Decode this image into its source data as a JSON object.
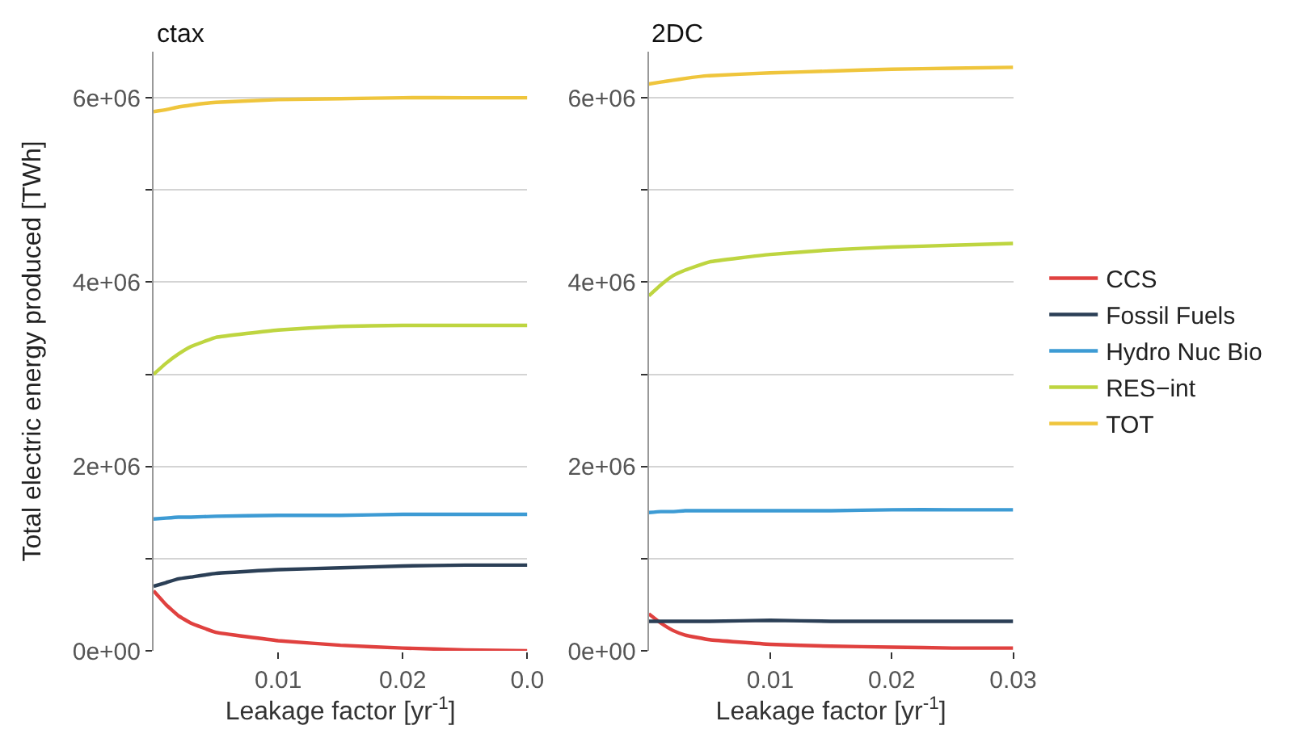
{
  "chart_data": [
    {
      "type": "line",
      "title": "ctax",
      "xlabel": "Leakage factor [yr$^{-1}$]",
      "ylabel": "Total electric energy produced [TWh]",
      "x": [
        0,
        0.001,
        0.002,
        0.003,
        0.005,
        0.01,
        0.015,
        0.02,
        0.025,
        0.03
      ],
      "xlim": [
        0,
        0.03
      ],
      "xticks": [
        0.01,
        0.02,
        {
          "value": 0.03,
          "label": "0.0"
        }
      ],
      "ylim": [
        0,
        6500000
      ],
      "yticks": [
        {
          "value": 0,
          "label": "0e+00"
        },
        {
          "value": 1000000,
          "label": null
        },
        {
          "value": 2000000,
          "label": "2e+06"
        },
        {
          "value": 3000000,
          "label": null
        },
        {
          "value": 4000000,
          "label": "4e+06"
        },
        {
          "value": 5000000,
          "label": null
        },
        {
          "value": 6000000,
          "label": "6e+06"
        }
      ],
      "grid": "y",
      "series": [
        {
          "color": "#e0413f",
          "values": [
            650000,
            500000,
            380000,
            300000,
            200000,
            110000,
            60000,
            30000,
            10000,
            0
          ]
        },
        {
          "color": "#2b3f56",
          "values": [
            700000,
            740000,
            780000,
            800000,
            840000,
            880000,
            900000,
            920000,
            930000,
            930000
          ]
        },
        {
          "color": "#3d9bd4",
          "values": [
            1430000,
            1440000,
            1450000,
            1450000,
            1460000,
            1470000,
            1470000,
            1480000,
            1480000,
            1480000
          ]
        },
        {
          "color": "#bed540",
          "values": [
            3000000,
            3120000,
            3220000,
            3300000,
            3400000,
            3480000,
            3520000,
            3530000,
            3530000,
            3530000
          ]
        },
        {
          "color": "#efc53c",
          "values": [
            5850000,
            5870000,
            5900000,
            5920000,
            5950000,
            5980000,
            5990000,
            6000000,
            6000000,
            6000000
          ]
        }
      ]
    },
    {
      "type": "line",
      "title": "2DC",
      "xlabel": "Leakage factor [yr$^{-1}$]",
      "x": [
        0,
        0.001,
        0.002,
        0.003,
        0.005,
        0.01,
        0.015,
        0.02,
        0.025,
        0.03
      ],
      "xlim": [
        0,
        0.03
      ],
      "xticks": [
        0.01,
        0.02,
        0.03
      ],
      "ylim": [
        0,
        6500000
      ],
      "yticks": [
        {
          "value": 0,
          "label": "0e+00"
        },
        {
          "value": 1000000,
          "label": null
        },
        {
          "value": 2000000,
          "label": "2e+06"
        },
        {
          "value": 3000000,
          "label": null
        },
        {
          "value": 4000000,
          "label": "4e+06"
        },
        {
          "value": 5000000,
          "label": null
        },
        {
          "value": 6000000,
          "label": "6e+06"
        }
      ],
      "grid": "y",
      "legend": "right",
      "series": [
        {
          "name": "CCS",
          "color": "#e0413f",
          "values": [
            400000,
            300000,
            220000,
            170000,
            120000,
            70000,
            50000,
            40000,
            30000,
            30000
          ]
        },
        {
          "name": "Fossil Fuels",
          "color": "#2b3f56",
          "values": [
            320000,
            320000,
            320000,
            320000,
            320000,
            330000,
            320000,
            320000,
            320000,
            320000
          ]
        },
        {
          "name": "Hydro Nuc Bio",
          "color": "#3d9bd4",
          "values": [
            1500000,
            1510000,
            1510000,
            1520000,
            1520000,
            1520000,
            1520000,
            1530000,
            1530000,
            1530000
          ]
        },
        {
          "name": "RES−int",
          "color": "#bed540",
          "values": [
            3850000,
            3970000,
            4070000,
            4130000,
            4220000,
            4300000,
            4350000,
            4380000,
            4400000,
            4420000
          ]
        },
        {
          "name": "TOT",
          "color": "#efc53c",
          "values": [
            6150000,
            6170000,
            6190000,
            6210000,
            6240000,
            6270000,
            6290000,
            6310000,
            6320000,
            6330000
          ]
        }
      ]
    }
  ]
}
